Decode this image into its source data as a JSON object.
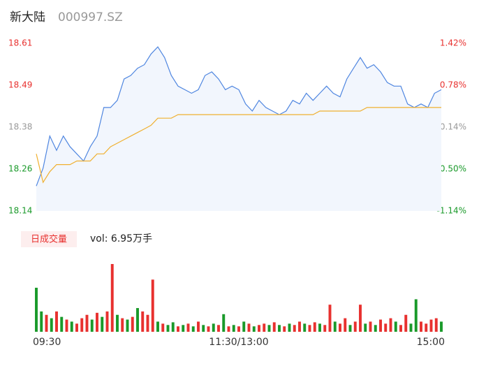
{
  "header": {
    "name": "新大陆",
    "code": "000997.SZ"
  },
  "chart_data": [
    {
      "type": "line",
      "xlim": [
        0,
        240
      ],
      "x": [
        0,
        4,
        8,
        12,
        16,
        20,
        24,
        28,
        32,
        36,
        40,
        44,
        48,
        52,
        56,
        60,
        64,
        68,
        72,
        76,
        80,
        84,
        88,
        92,
        96,
        100,
        104,
        108,
        112,
        116,
        120,
        124,
        128,
        132,
        136,
        140,
        144,
        148,
        152,
        156,
        160,
        164,
        168,
        172,
        176,
        180,
        184,
        188,
        192,
        196,
        200,
        204,
        208,
        212,
        216,
        220,
        224,
        228,
        232,
        236,
        240
      ],
      "xticks": [
        {
          "value": 0,
          "label": "09:30"
        },
        {
          "value": 120,
          "label": "11:30/13:00"
        },
        {
          "value": 240,
          "label": "15:00"
        }
      ],
      "ylim": [
        18.14,
        18.61
      ],
      "yticks": [
        {
          "value": 18.14,
          "label": "18.14"
        },
        {
          "value": 18.2575,
          "label": "18.26"
        },
        {
          "value": 18.375,
          "label": "18.38"
        },
        {
          "value": 18.4925,
          "label": "18.49"
        },
        {
          "value": 18.61,
          "label": "18.61"
        }
      ],
      "y2lim": [
        -1.14,
        1.42
      ],
      "y2ticks": [
        {
          "value": -1.14,
          "label": "-1.14%"
        },
        {
          "value": -0.5,
          "label": "-0.50%"
        },
        {
          "value": 0.14,
          "label": "0.14%"
        },
        {
          "value": 0.78,
          "label": "0.78%"
        },
        {
          "value": 1.42,
          "label": "1.42%"
        }
      ],
      "up_color": "#e8312f",
      "down_color": "#1a9a2a",
      "flat_color": "#999999",
      "series": [
        {
          "color": "#4f86e0",
          "fill": "#f2f6fd",
          "values": [
            18.21,
            18.26,
            18.35,
            18.31,
            18.35,
            18.32,
            18.3,
            18.28,
            18.32,
            18.35,
            18.43,
            18.43,
            18.45,
            18.51,
            18.52,
            18.54,
            18.55,
            18.58,
            18.6,
            18.57,
            18.52,
            18.49,
            18.48,
            18.47,
            18.48,
            18.52,
            18.53,
            18.51,
            18.48,
            18.49,
            18.48,
            18.44,
            18.42,
            18.45,
            18.43,
            18.42,
            18.41,
            18.42,
            18.45,
            18.44,
            18.47,
            18.45,
            18.47,
            18.49,
            18.47,
            18.46,
            18.51,
            18.54,
            18.57,
            18.54,
            18.55,
            18.53,
            18.5,
            18.49,
            18.49,
            18.44,
            18.43,
            18.44,
            18.43,
            18.47,
            18.48
          ]
        },
        {
          "color": "#f0b030",
          "values": [
            18.3,
            18.22,
            18.25,
            18.27,
            18.27,
            18.27,
            18.28,
            18.28,
            18.28,
            18.3,
            18.3,
            18.32,
            18.33,
            18.34,
            18.35,
            18.36,
            18.37,
            18.38,
            18.4,
            18.4,
            18.4,
            18.41,
            18.41,
            18.41,
            18.41,
            18.41,
            18.41,
            18.41,
            18.41,
            18.41,
            18.41,
            18.41,
            18.41,
            18.41,
            18.41,
            18.41,
            18.41,
            18.41,
            18.41,
            18.41,
            18.41,
            18.41,
            18.42,
            18.42,
            18.42,
            18.42,
            18.42,
            18.42,
            18.42,
            18.43,
            18.43,
            18.43,
            18.43,
            18.43,
            18.43,
            18.43,
            18.43,
            18.43,
            18.43,
            18.43,
            18.43
          ]
        }
      ]
    },
    {
      "type": "bar",
      "legend": "日成交量",
      "subtitle": "vol: 6.95万手",
      "xlim": [
        0,
        240
      ],
      "ylim": [
        0,
        100
      ],
      "x": [
        0,
        3,
        6,
        9,
        12,
        15,
        18,
        21,
        24,
        27,
        30,
        33,
        36,
        39,
        42,
        45,
        48,
        51,
        54,
        57,
        60,
        63,
        66,
        69,
        72,
        75,
        78,
        81,
        84,
        87,
        90,
        93,
        96,
        99,
        102,
        105,
        108,
        111,
        114,
        117,
        120,
        123,
        126,
        129,
        132,
        135,
        138,
        141,
        144,
        147,
        150,
        153,
        156,
        159,
        162,
        165,
        168,
        171,
        174,
        177,
        180,
        183,
        186,
        189,
        192,
        195,
        198,
        201,
        204,
        207,
        210,
        213,
        216,
        219,
        222,
        225,
        228,
        231,
        234,
        237,
        240
      ],
      "values": [
        65,
        30,
        25,
        20,
        30,
        22,
        18,
        15,
        12,
        20,
        25,
        18,
        28,
        22,
        30,
        100,
        25,
        20,
        18,
        22,
        35,
        30,
        25,
        77,
        15,
        12,
        10,
        14,
        8,
        10,
        12,
        8,
        15,
        10,
        8,
        12,
        10,
        26,
        8,
        10,
        8,
        15,
        12,
        8,
        10,
        12,
        10,
        14,
        10,
        8,
        12,
        10,
        15,
        12,
        10,
        14,
        12,
        10,
        40,
        15,
        12,
        20,
        10,
        15,
        40,
        12,
        15,
        10,
        18,
        12,
        20,
        15,
        10,
        25,
        12,
        48,
        15,
        12,
        18,
        20,
        15
      ],
      "colors": [
        "#1a9a2a",
        "#1a9a2a",
        "#e8312f",
        "#1a9a2a",
        "#e8312f",
        "#1a9a2a",
        "#e8312f",
        "#1a9a2a",
        "#e8312f",
        "#e8312f",
        "#e8312f",
        "#1a9a2a",
        "#e8312f",
        "#1a9a2a",
        "#e8312f",
        "#e8312f",
        "#1a9a2a",
        "#e8312f",
        "#1a9a2a",
        "#e8312f",
        "#1a9a2a",
        "#e8312f",
        "#e8312f",
        "#e8312f",
        "#1a9a2a",
        "#e8312f",
        "#1a9a2a",
        "#1a9a2a",
        "#e8312f",
        "#1a9a2a",
        "#e8312f",
        "#1a9a2a",
        "#e8312f",
        "#1a9a2a",
        "#e8312f",
        "#1a9a2a",
        "#e8312f",
        "#1a9a2a",
        "#e8312f",
        "#1a9a2a",
        "#e8312f",
        "#1a9a2a",
        "#e8312f",
        "#1a9a2a",
        "#e8312f",
        "#e8312f",
        "#1a9a2a",
        "#e8312f",
        "#1a9a2a",
        "#e8312f",
        "#1a9a2a",
        "#e8312f",
        "#e8312f",
        "#1a9a2a",
        "#e8312f",
        "#e8312f",
        "#1a9a2a",
        "#e8312f",
        "#e8312f",
        "#1a9a2a",
        "#e8312f",
        "#e8312f",
        "#1a9a2a",
        "#e8312f",
        "#e8312f",
        "#1a9a2a",
        "#e8312f",
        "#1a9a2a",
        "#e8312f",
        "#e8312f",
        "#e8312f",
        "#1a9a2a",
        "#e8312f",
        "#e8312f",
        "#1a9a2a",
        "#1a9a2a",
        "#e8312f",
        "#e8312f",
        "#e8312f",
        "#e8312f",
        "#1a9a2a"
      ]
    }
  ]
}
